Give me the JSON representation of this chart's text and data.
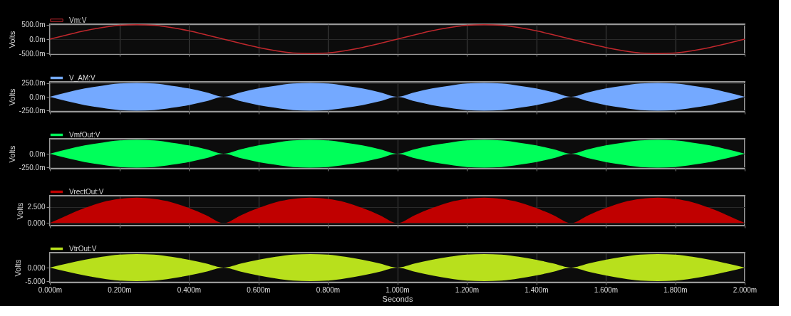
{
  "chart_data": [
    {
      "type": "line",
      "ylabel": "Volts",
      "legend": "top left",
      "grid": true,
      "tick_labels": "y",
      "x": [
        0,
        0.05,
        0.1,
        0.15,
        0.2,
        0.25,
        0.3,
        0.35,
        0.4,
        0.45,
        0.5,
        0.55,
        0.6,
        0.65,
        0.7,
        0.75,
        0.8,
        0.85,
        0.9,
        0.95,
        1,
        1.05,
        1.1,
        1.15,
        1.2,
        1.25,
        1.3,
        1.35,
        1.4,
        1.45,
        1.5,
        1.55,
        1.6,
        1.65,
        1.7,
        1.75,
        1.8,
        1.85,
        1.9,
        1.95,
        2
      ],
      "xlim": [
        0,
        2
      ],
      "xticks": [
        {
          "value": 0,
          "label": null
        },
        {
          "value": 0.2,
          "label": null
        },
        {
          "value": 0.4,
          "label": null
        },
        {
          "value": 0.6,
          "label": null
        },
        {
          "value": 0.8,
          "label": null
        },
        {
          "value": 1,
          "label": null
        },
        {
          "value": 1.2,
          "label": null
        },
        {
          "value": 1.4,
          "label": null
        },
        {
          "value": 1.6,
          "label": null
        },
        {
          "value": 1.8,
          "label": null
        },
        {
          "value": 2,
          "label": null
        }
      ],
      "ylim": [
        -520,
        520
      ],
      "yticks": [
        {
          "value": 500,
          "label": "500.0m"
        },
        {
          "value": 0,
          "label": "0.0m"
        },
        {
          "value": -500,
          "label": "-500.0m"
        }
      ],
      "series": [
        {
          "name": "Vm:V",
          "color": "#c0282d",
          "values": [
            0,
            150,
            290,
            400,
            480,
            500,
            480,
            400,
            290,
            150,
            0,
            -150,
            -290,
            -400,
            -480,
            -500,
            -480,
            -400,
            -290,
            -150,
            0,
            150,
            290,
            400,
            480,
            500,
            480,
            400,
            290,
            150,
            0,
            -150,
            -290,
            -400,
            -480,
            -500,
            -480,
            -400,
            -290,
            -150,
            0
          ]
        }
      ]
    },
    {
      "type": "area",
      "ylabel": "Volts",
      "legend": "top left",
      "grid": true,
      "tick_labels": "y",
      "x": [
        0,
        0.05,
        0.1,
        0.15,
        0.2,
        0.25,
        0.3,
        0.35,
        0.4,
        0.45,
        0.5,
        0.55,
        0.6,
        0.65,
        0.7,
        0.75,
        0.8,
        0.85,
        0.9,
        0.95,
        1,
        1.05,
        1.1,
        1.15,
        1.2,
        1.25,
        1.3,
        1.35,
        1.4,
        1.45,
        1.5,
        1.55,
        1.6,
        1.65,
        1.7,
        1.75,
        1.8,
        1.85,
        1.9,
        1.95,
        2
      ],
      "xlim": [
        0,
        2
      ],
      "xticks": [
        {
          "value": 0,
          "label": null
        },
        {
          "value": 0.2,
          "label": null
        },
        {
          "value": 0.4,
          "label": null
        },
        {
          "value": 0.6,
          "label": null
        },
        {
          "value": 0.8,
          "label": null
        },
        {
          "value": 1,
          "label": null
        },
        {
          "value": 1.2,
          "label": null
        },
        {
          "value": 1.4,
          "label": null
        },
        {
          "value": 1.6,
          "label": null
        },
        {
          "value": 1.8,
          "label": null
        },
        {
          "value": 2,
          "label": null
        }
      ],
      "ylim": [
        -270,
        270
      ],
      "yticks": [
        {
          "value": 250,
          "label": "250.0m"
        },
        {
          "value": 0,
          "label": "0.0m"
        },
        {
          "value": -250,
          "label": "-250.0m"
        }
      ],
      "series": [
        {
          "name": "V_AM:V",
          "color": "#74a9ff",
          "values": [
            0,
            80,
            150,
            200,
            240,
            250,
            240,
            200,
            150,
            80,
            0,
            80,
            150,
            200,
            240,
            250,
            240,
            200,
            150,
            80,
            0,
            80,
            150,
            200,
            240,
            250,
            240,
            200,
            150,
            80,
            0,
            80,
            150,
            200,
            240,
            250,
            240,
            200,
            150,
            80,
            0
          ]
        },
        {
          "color": "#74a9ff",
          "values": [
            0,
            -80,
            -150,
            -200,
            -240,
            -250,
            -240,
            -200,
            -150,
            -80,
            0,
            -80,
            -150,
            -200,
            -240,
            -250,
            -240,
            -200,
            -150,
            -80,
            0,
            -80,
            -150,
            -200,
            -240,
            -250,
            -240,
            -200,
            -150,
            -80,
            0,
            -80,
            -150,
            -200,
            -240,
            -250,
            -240,
            -200,
            -150,
            -80,
            0
          ]
        }
      ]
    },
    {
      "type": "area",
      "ylabel": "Volts",
      "legend": "top left",
      "grid": true,
      "tick_labels": "y",
      "x": [
        0,
        0.05,
        0.1,
        0.15,
        0.2,
        0.25,
        0.3,
        0.35,
        0.4,
        0.45,
        0.5,
        0.55,
        0.6,
        0.65,
        0.7,
        0.75,
        0.8,
        0.85,
        0.9,
        0.95,
        1,
        1.05,
        1.1,
        1.15,
        1.2,
        1.25,
        1.3,
        1.35,
        1.4,
        1.45,
        1.5,
        1.55,
        1.6,
        1.65,
        1.7,
        1.75,
        1.8,
        1.85,
        1.9,
        1.95,
        2
      ],
      "xlim": [
        0,
        2
      ],
      "xticks": [
        {
          "value": 0,
          "label": null
        },
        {
          "value": 0.2,
          "label": null
        },
        {
          "value": 0.4,
          "label": null
        },
        {
          "value": 0.6,
          "label": null
        },
        {
          "value": 0.8,
          "label": null
        },
        {
          "value": 1,
          "label": null
        },
        {
          "value": 1.2,
          "label": null
        },
        {
          "value": 1.4,
          "label": null
        },
        {
          "value": 1.6,
          "label": null
        },
        {
          "value": 1.8,
          "label": null
        },
        {
          "value": 2,
          "label": null
        }
      ],
      "ylim": [
        -270,
        270
      ],
      "yticks": [
        {
          "value": 0,
          "label": "0.0m"
        },
        {
          "value": -250,
          "label": "-250.0m"
        }
      ],
      "series": [
        {
          "name": "VmfOut:V",
          "color": "#00ff5a",
          "values": [
            0,
            80,
            150,
            200,
            240,
            250,
            240,
            200,
            150,
            80,
            0,
            80,
            150,
            200,
            240,
            250,
            240,
            200,
            150,
            80,
            0,
            80,
            150,
            200,
            240,
            250,
            240,
            200,
            150,
            80,
            0,
            80,
            150,
            200,
            240,
            250,
            240,
            200,
            150,
            80,
            0
          ]
        },
        {
          "color": "#00ff5a",
          "values": [
            0,
            -80,
            -150,
            -200,
            -240,
            -250,
            -240,
            -200,
            -150,
            -80,
            0,
            -80,
            -150,
            -200,
            -240,
            -250,
            -240,
            -200,
            -150,
            -80,
            0,
            -80,
            -150,
            -200,
            -240,
            -250,
            -240,
            -200,
            -150,
            -80,
            0,
            -80,
            -150,
            -200,
            -240,
            -250,
            -240,
            -200,
            -150,
            -80,
            0
          ]
        }
      ]
    },
    {
      "type": "area",
      "ylabel": "Volts",
      "legend": "top left",
      "grid": true,
      "tick_labels": "y",
      "x": [
        0,
        0.05,
        0.1,
        0.15,
        0.2,
        0.25,
        0.3,
        0.35,
        0.4,
        0.45,
        0.5,
        0.55,
        0.6,
        0.65,
        0.7,
        0.75,
        0.8,
        0.85,
        0.9,
        0.95,
        1,
        1.05,
        1.1,
        1.15,
        1.2,
        1.25,
        1.3,
        1.35,
        1.4,
        1.45,
        1.5,
        1.55,
        1.6,
        1.65,
        1.7,
        1.75,
        1.8,
        1.85,
        1.9,
        1.95,
        2
      ],
      "xlim": [
        0,
        2
      ],
      "xticks": [
        {
          "value": 0,
          "label": null
        },
        {
          "value": 0.2,
          "label": null
        },
        {
          "value": 0.4,
          "label": null
        },
        {
          "value": 0.6,
          "label": null
        },
        {
          "value": 0.8,
          "label": null
        },
        {
          "value": 1,
          "label": null
        },
        {
          "value": 1.2,
          "label": null
        },
        {
          "value": 1.4,
          "label": null
        },
        {
          "value": 1.6,
          "label": null
        },
        {
          "value": 1.8,
          "label": null
        },
        {
          "value": 2,
          "label": null
        }
      ],
      "ylim": [
        -0.4,
        4.2
      ],
      "yticks": [
        {
          "value": 2.5,
          "label": "2.500"
        },
        {
          "value": 0,
          "label": "0.000"
        }
      ],
      "series": [
        {
          "name": "VrectOut:V",
          "color": "#c00000",
          "values": [
            0,
            1.2,
            2.3,
            3.2,
            3.7,
            3.9,
            3.7,
            3.2,
            2.3,
            1.2,
            0,
            1.2,
            2.3,
            3.2,
            3.7,
            3.9,
            3.7,
            3.2,
            2.3,
            1.2,
            0,
            1.2,
            2.3,
            3.2,
            3.7,
            3.9,
            3.7,
            3.2,
            2.3,
            1.2,
            0,
            1.2,
            2.3,
            3.2,
            3.7,
            3.9,
            3.7,
            3.2,
            2.3,
            1.2,
            0
          ]
        }
      ]
    },
    {
      "type": "area",
      "ylabel": "Volts",
      "xlabel": "Seconds",
      "legend": "top left",
      "grid": true,
      "x": [
        0,
        0.05,
        0.1,
        0.15,
        0.2,
        0.25,
        0.3,
        0.35,
        0.4,
        0.45,
        0.5,
        0.55,
        0.6,
        0.65,
        0.7,
        0.75,
        0.8,
        0.85,
        0.9,
        0.95,
        1,
        1.05,
        1.1,
        1.15,
        1.2,
        1.25,
        1.3,
        1.35,
        1.4,
        1.45,
        1.5,
        1.55,
        1.6,
        1.65,
        1.7,
        1.75,
        1.8,
        1.85,
        1.9,
        1.95,
        2
      ],
      "xlim": [
        0,
        2
      ],
      "xticks": [
        {
          "value": 0,
          "label": "0.000m"
        },
        {
          "value": 0.2,
          "label": "0.200m"
        },
        {
          "value": 0.4,
          "label": "0.400m"
        },
        {
          "value": 0.6,
          "label": "0.600m"
        },
        {
          "value": 0.8,
          "label": "0.800m"
        },
        {
          "value": 1,
          "label": "1.000m"
        },
        {
          "value": 1.2,
          "label": "1.200m"
        },
        {
          "value": 1.4,
          "label": "1.400m"
        },
        {
          "value": 1.6,
          "label": "1.600m"
        },
        {
          "value": 1.8,
          "label": "1.800m"
        },
        {
          "value": 2,
          "label": "2.000m"
        }
      ],
      "ylim": [
        -5.5,
        5.5
      ],
      "yticks": [
        {
          "value": 0,
          "label": "0.000"
        },
        {
          "value": -5,
          "label": "-5.000"
        }
      ],
      "series": [
        {
          "name": "VtrOut:V",
          "color": "#b8e01c",
          "values": [
            0,
            1.5,
            2.9,
            4,
            4.8,
            5,
            4.8,
            4,
            2.9,
            1.5,
            0,
            1.5,
            2.9,
            4,
            4.8,
            5,
            4.8,
            4,
            2.9,
            1.5,
            0,
            1.5,
            2.9,
            4,
            4.8,
            5,
            4.8,
            4,
            2.9,
            1.5,
            0,
            1.5,
            2.9,
            4,
            4.8,
            5,
            4.8,
            4,
            2.9,
            1.5,
            0
          ]
        },
        {
          "color": "#b8e01c",
          "values": [
            0,
            -1.5,
            -2.9,
            -4,
            -4.8,
            -5,
            -4.8,
            -4,
            -2.9,
            -1.5,
            0,
            -1.5,
            -2.9,
            -4,
            -4.8,
            -5,
            -4.8,
            -4,
            -2.9,
            -1.5,
            0,
            -1.5,
            -2.9,
            -4,
            -4.8,
            -5,
            -4.8,
            -4,
            -2.9,
            -1.5,
            0,
            -1.5,
            -2.9,
            -4,
            -4.8,
            -5,
            -4.8,
            -4,
            -2.9,
            -1.5,
            0
          ]
        }
      ]
    }
  ]
}
